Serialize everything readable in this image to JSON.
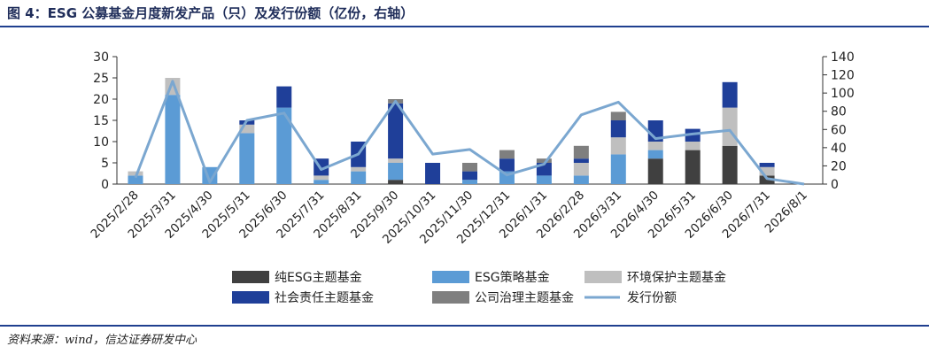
{
  "figure": {
    "title": "图 4：ESG 公募基金月度新发产品（只）及发行份额（亿份，右轴）",
    "source": "资料来源：wind，信达证券研发中心"
  },
  "chart_data": {
    "type": "bar",
    "stacked": true,
    "categories": [
      "2025/2/28",
      "2025/3/31",
      "2025/4/30",
      "2025/5/31",
      "2025/6/30",
      "2025/7/31",
      "2025/8/31",
      "2025/9/30",
      "2025/10/31",
      "2025/11/30",
      "2025/12/31",
      "2026/1/31",
      "2026/2/28",
      "2026/3/31",
      "2026/4/30",
      "2026/5/31",
      "2026/6/30",
      "2026/7/31",
      "2026/8/1"
    ],
    "series": [
      {
        "name": "纯ESG主题基金",
        "color": "#404040",
        "axis": "left",
        "values": [
          0,
          0,
          0,
          0,
          0,
          0,
          0,
          1,
          0,
          0,
          0,
          0,
          0,
          0,
          6,
          8,
          9,
          2,
          0
        ]
      },
      {
        "name": "ESG策略基金",
        "color": "#5b9bd5",
        "axis": "left",
        "values": [
          2,
          21,
          4,
          12,
          18,
          1,
          3,
          4,
          0,
          1,
          3,
          2,
          2,
          7,
          2,
          0,
          0,
          0,
          0
        ]
      },
      {
        "name": "环境保护主题基金",
        "color": "#bfbfbf",
        "axis": "left",
        "values": [
          1,
          4,
          0,
          2,
          0,
          1,
          1,
          1,
          0,
          0,
          0,
          0,
          3,
          4,
          2,
          2,
          9,
          2,
          0
        ]
      },
      {
        "name": "社会责任主题基金",
        "color": "#1f3f99",
        "axis": "left",
        "values": [
          0,
          0,
          0,
          1,
          5,
          4,
          6,
          13,
          5,
          2,
          3,
          3,
          1,
          4,
          5,
          3,
          6,
          1,
          0
        ]
      },
      {
        "name": "公司治理主题基金",
        "color": "#7f7f7f",
        "axis": "left",
        "values": [
          0,
          0,
          0,
          0,
          0,
          0,
          0,
          1,
          0,
          2,
          2,
          1,
          3,
          2,
          0,
          0,
          0,
          0,
          0
        ]
      },
      {
        "name": "发行份额",
        "color": "#7ba7d0",
        "axis": "right",
        "type": "line",
        "values": [
          7,
          113,
          2,
          70,
          78,
          16,
          33,
          91,
          33,
          38,
          10,
          22,
          76,
          90,
          50,
          55,
          59,
          6,
          0
        ]
      }
    ],
    "yaxis_left": {
      "min": 0,
      "max": 30,
      "ticks": [
        "0",
        "5",
        "10",
        "15",
        "20",
        "25",
        "30"
      ]
    },
    "yaxis_right": {
      "min": 0,
      "max": 140,
      "ticks": [
        "0",
        "20",
        "40",
        "60",
        "80",
        "100",
        "120",
        "140"
      ]
    },
    "legend": {
      "position": "bottom"
    }
  }
}
